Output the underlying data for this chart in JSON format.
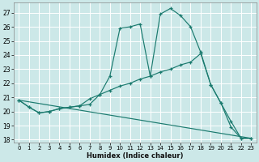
{
  "title": "",
  "xlabel": "Humidex (Indice chaleur)",
  "bg_color": "#cce8e8",
  "grid_color": "#ffffff",
  "line_color": "#1a7a6e",
  "xlim": [
    -0.5,
    23.5
  ],
  "ylim": [
    17.8,
    27.7
  ],
  "yticks": [
    18,
    19,
    20,
    21,
    22,
    23,
    24,
    25,
    26,
    27
  ],
  "xticks": [
    0,
    1,
    2,
    3,
    4,
    5,
    6,
    7,
    8,
    9,
    10,
    11,
    12,
    13,
    14,
    15,
    16,
    17,
    18,
    19,
    20,
    21,
    22,
    23
  ],
  "line1_x": [
    0,
    1,
    2,
    3,
    4,
    5,
    6,
    7,
    8,
    9,
    10,
    11,
    12,
    13,
    14,
    15,
    16,
    17,
    18,
    19,
    20,
    21,
    22,
    23
  ],
  "line1_y": [
    20.8,
    20.3,
    19.9,
    20.0,
    20.2,
    20.3,
    20.4,
    20.5,
    21.2,
    22.5,
    25.9,
    26.0,
    26.2,
    22.5,
    26.9,
    27.3,
    26.8,
    26.0,
    24.2,
    21.9,
    20.6,
    18.9,
    18.1,
    18.1
  ],
  "line2_x": [
    0,
    1,
    2,
    3,
    4,
    5,
    6,
    7,
    8,
    9,
    10,
    11,
    12,
    13,
    14,
    15,
    16,
    17,
    18,
    19,
    20,
    21,
    22,
    23
  ],
  "line2_y": [
    20.8,
    20.3,
    19.9,
    20.0,
    20.2,
    20.3,
    20.4,
    20.9,
    21.2,
    21.5,
    21.8,
    22.0,
    22.3,
    22.5,
    22.8,
    23.0,
    23.3,
    23.5,
    24.1,
    21.9,
    20.6,
    19.3,
    18.1,
    18.1
  ],
  "line3_x": [
    0,
    23
  ],
  "line3_y": [
    20.8,
    18.1
  ]
}
